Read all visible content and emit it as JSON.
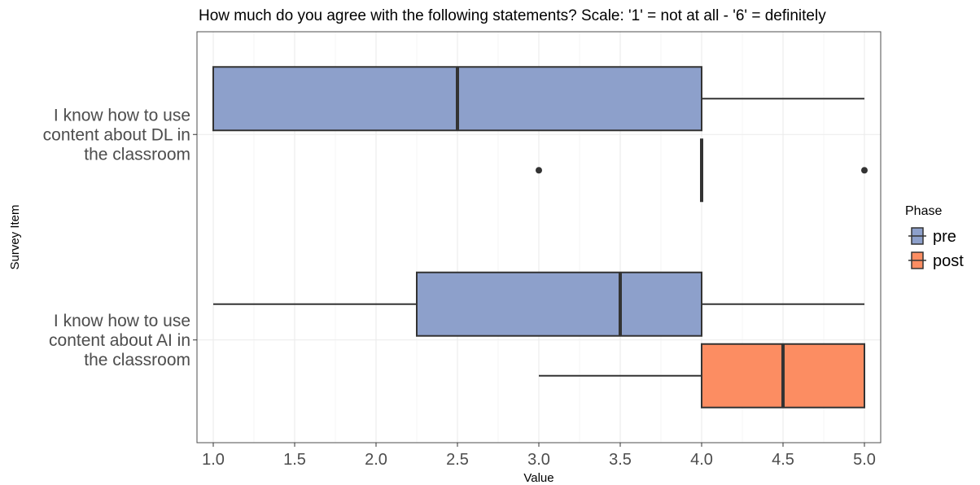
{
  "chart_data": {
    "type": "boxplot",
    "orientation": "horizontal",
    "title": "How much do you agree with the following statements? Scale: '1' = not at all - '6' = definitely",
    "xlabel": "Value",
    "ylabel": "Survey Item",
    "xlim": [
      0.9,
      5.1
    ],
    "x_ticks": [
      "1.0",
      "1.5",
      "2.0",
      "2.5",
      "3.0",
      "3.5",
      "4.0",
      "4.5",
      "5.0"
    ],
    "x_tick_values": [
      1.0,
      1.5,
      2.0,
      2.5,
      3.0,
      3.5,
      4.0,
      4.5,
      5.0
    ],
    "grid": true,
    "legend": {
      "title": "Phase",
      "position": "right",
      "entries": [
        {
          "name": "pre",
          "color": "#8da0cb"
        },
        {
          "name": "post",
          "color": "#fc8d62"
        }
      ]
    },
    "categories": [
      {
        "label_lines": [
          "I know how to use",
          "content about DL in",
          "the classroom"
        ],
        "boxes": [
          {
            "phase": "pre",
            "whisker_low": 1.0,
            "q1": 1.0,
            "median": 2.5,
            "q3": 4.0,
            "whisker_high": 5.0,
            "outliers": []
          },
          {
            "phase": "post",
            "whisker_low": 4.0,
            "q1": 4.0,
            "median": 4.0,
            "q3": 4.0,
            "whisker_high": 4.0,
            "outliers": [
              3.0,
              5.0
            ]
          }
        ]
      },
      {
        "label_lines": [
          "I know how to use",
          "content about AI in",
          "the classroom"
        ],
        "boxes": [
          {
            "phase": "pre",
            "whisker_low": 1.0,
            "q1": 2.25,
            "median": 3.5,
            "q3": 4.0,
            "whisker_high": 5.0,
            "outliers": []
          },
          {
            "phase": "post",
            "whisker_low": 3.0,
            "q1": 4.0,
            "median": 4.5,
            "q3": 5.0,
            "whisker_high": 5.0,
            "outliers": []
          }
        ]
      }
    ]
  }
}
